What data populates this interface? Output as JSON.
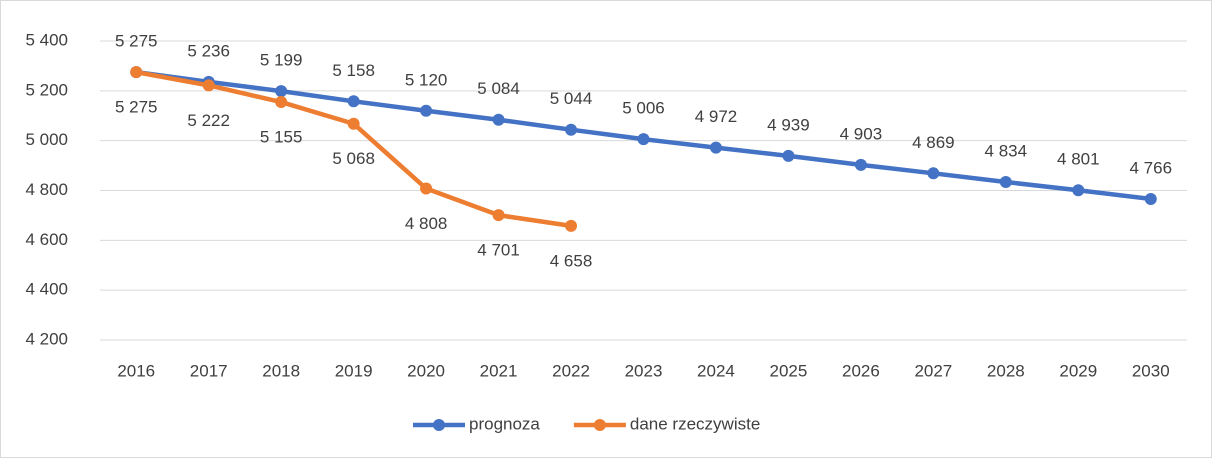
{
  "chart_data": {
    "type": "line",
    "categories": [
      "2016",
      "2017",
      "2018",
      "2019",
      "2020",
      "2021",
      "2022",
      "2023",
      "2024",
      "2025",
      "2026",
      "2027",
      "2028",
      "2029",
      "2030"
    ],
    "series": [
      {
        "name": "prognoza",
        "color": "#4472c4",
        "values": [
          5275,
          5236,
          5199,
          5158,
          5120,
          5084,
          5044,
          5006,
          4972,
          4939,
          4903,
          4869,
          4834,
          4801,
          4766
        ],
        "value_labels": [
          "5 275",
          "5 236",
          "5 199",
          "5 158",
          "5 120",
          "5 084",
          "5 044",
          "5 006",
          "4 972",
          "4 939",
          "4 903",
          "4 869",
          "4 834",
          "4 801",
          "4 766"
        ]
      },
      {
        "name": "dane rzeczywiste",
        "color": "#ed7d31",
        "values": [
          5275,
          5222,
          5155,
          5068,
          4808,
          4701,
          4658,
          null,
          null,
          null,
          null,
          null,
          null,
          null,
          null
        ],
        "value_labels": [
          "5 275",
          "5 222",
          "5 155",
          "5 068",
          "4 808",
          "4 701",
          "4 658",
          null,
          null,
          null,
          null,
          null,
          null,
          null,
          null
        ]
      }
    ],
    "ylim": [
      4200,
      5400
    ],
    "yticks": [
      {
        "value": 4200,
        "label": "4 200"
      },
      {
        "value": 4400,
        "label": "4 400"
      },
      {
        "value": 4600,
        "label": "4 600"
      },
      {
        "value": 4800,
        "label": "4 800"
      },
      {
        "value": 5000,
        "label": "5 000"
      },
      {
        "value": 5200,
        "label": "5 200"
      },
      {
        "value": 5400,
        "label": "5 400"
      }
    ],
    "grid": true,
    "legend": "bottom"
  }
}
